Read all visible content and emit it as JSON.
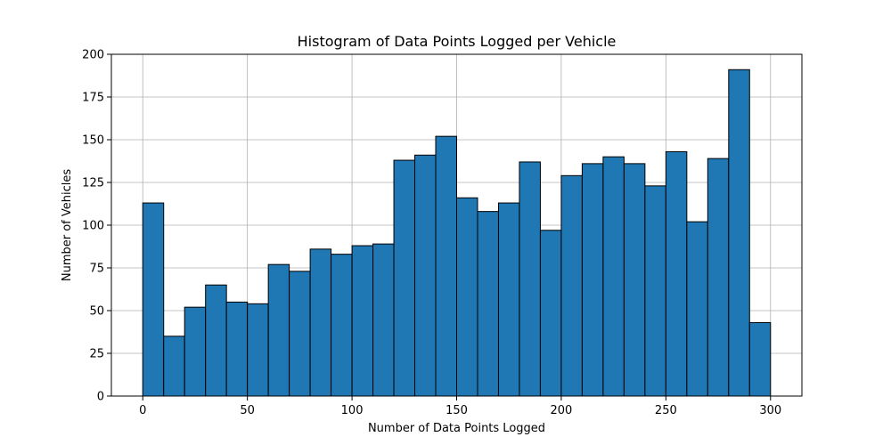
{
  "chart_data": {
    "type": "bar",
    "title": "Histogram of Data Points Logged per Vehicle",
    "xlabel": "Number of Data Points Logged",
    "ylabel": "Number of Vehicles",
    "xlim": [
      -15,
      315
    ],
    "ylim": [
      0,
      200
    ],
    "grid": true,
    "bar_color": "#1f77b4",
    "edge_color": "#000000",
    "bins": [
      {
        "start": 0,
        "end": 10,
        "value": 113
      },
      {
        "start": 10,
        "end": 20,
        "value": 35
      },
      {
        "start": 20,
        "end": 30,
        "value": 52
      },
      {
        "start": 30,
        "end": 40,
        "value": 65
      },
      {
        "start": 40,
        "end": 50,
        "value": 55
      },
      {
        "start": 50,
        "end": 60,
        "value": 54
      },
      {
        "start": 60,
        "end": 70,
        "value": 77
      },
      {
        "start": 70,
        "end": 80,
        "value": 73
      },
      {
        "start": 80,
        "end": 90,
        "value": 86
      },
      {
        "start": 90,
        "end": 100,
        "value": 83
      },
      {
        "start": 100,
        "end": 110,
        "value": 88
      },
      {
        "start": 110,
        "end": 120,
        "value": 89
      },
      {
        "start": 120,
        "end": 130,
        "value": 138
      },
      {
        "start": 130,
        "end": 140,
        "value": 141
      },
      {
        "start": 140,
        "end": 150,
        "value": 152
      },
      {
        "start": 150,
        "end": 160,
        "value": 116
      },
      {
        "start": 160,
        "end": 170,
        "value": 108
      },
      {
        "start": 170,
        "end": 180,
        "value": 113
      },
      {
        "start": 180,
        "end": 190,
        "value": 137
      },
      {
        "start": 190,
        "end": 200,
        "value": 97
      },
      {
        "start": 200,
        "end": 210,
        "value": 129
      },
      {
        "start": 210,
        "end": 220,
        "value": 136
      },
      {
        "start": 220,
        "end": 230,
        "value": 140
      },
      {
        "start": 230,
        "end": 240,
        "value": 136
      },
      {
        "start": 240,
        "end": 250,
        "value": 123
      },
      {
        "start": 250,
        "end": 260,
        "value": 143
      },
      {
        "start": 260,
        "end": 270,
        "value": 102
      },
      {
        "start": 270,
        "end": 280,
        "value": 139
      },
      {
        "start": 280,
        "end": 290,
        "value": 191
      },
      {
        "start": 290,
        "end": 300,
        "value": 43
      }
    ],
    "x_ticks": [
      0,
      50,
      100,
      150,
      200,
      250,
      300
    ],
    "y_ticks": [
      0,
      25,
      50,
      75,
      100,
      125,
      150,
      175,
      200
    ]
  }
}
